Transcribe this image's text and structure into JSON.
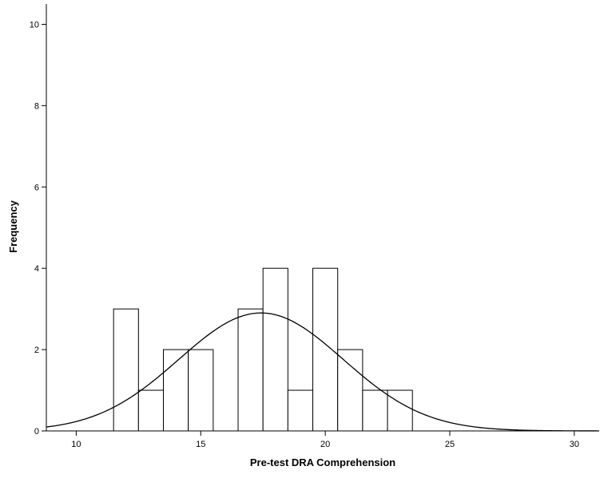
{
  "chart_data": {
    "type": "bar",
    "subtype": "histogram",
    "xlabel": "Pre-test DRA Comprehension",
    "ylabel": "Frequency",
    "xlim": [
      8.8,
      31
    ],
    "ylim": [
      0,
      10.5
    ],
    "x_ticks": [
      10,
      15,
      20,
      25,
      30
    ],
    "y_ticks": [
      0,
      2,
      4,
      6,
      8,
      10
    ],
    "bin_width": 1,
    "bins": [
      {
        "center": 12,
        "count": 3
      },
      {
        "center": 13,
        "count": 1
      },
      {
        "center": 14,
        "count": 2
      },
      {
        "center": 15,
        "count": 2
      },
      {
        "center": 17,
        "count": 3
      },
      {
        "center": 18,
        "count": 4
      },
      {
        "center": 19,
        "count": 1
      },
      {
        "center": 20,
        "count": 4
      },
      {
        "center": 21,
        "count": 2
      },
      {
        "center": 22,
        "count": 1
      },
      {
        "center": 23,
        "count": 1
      }
    ],
    "normal_curve": {
      "mean": 17.42,
      "std_dev": 3.3,
      "n": 24
    },
    "grid": false,
    "legend": "none"
  }
}
